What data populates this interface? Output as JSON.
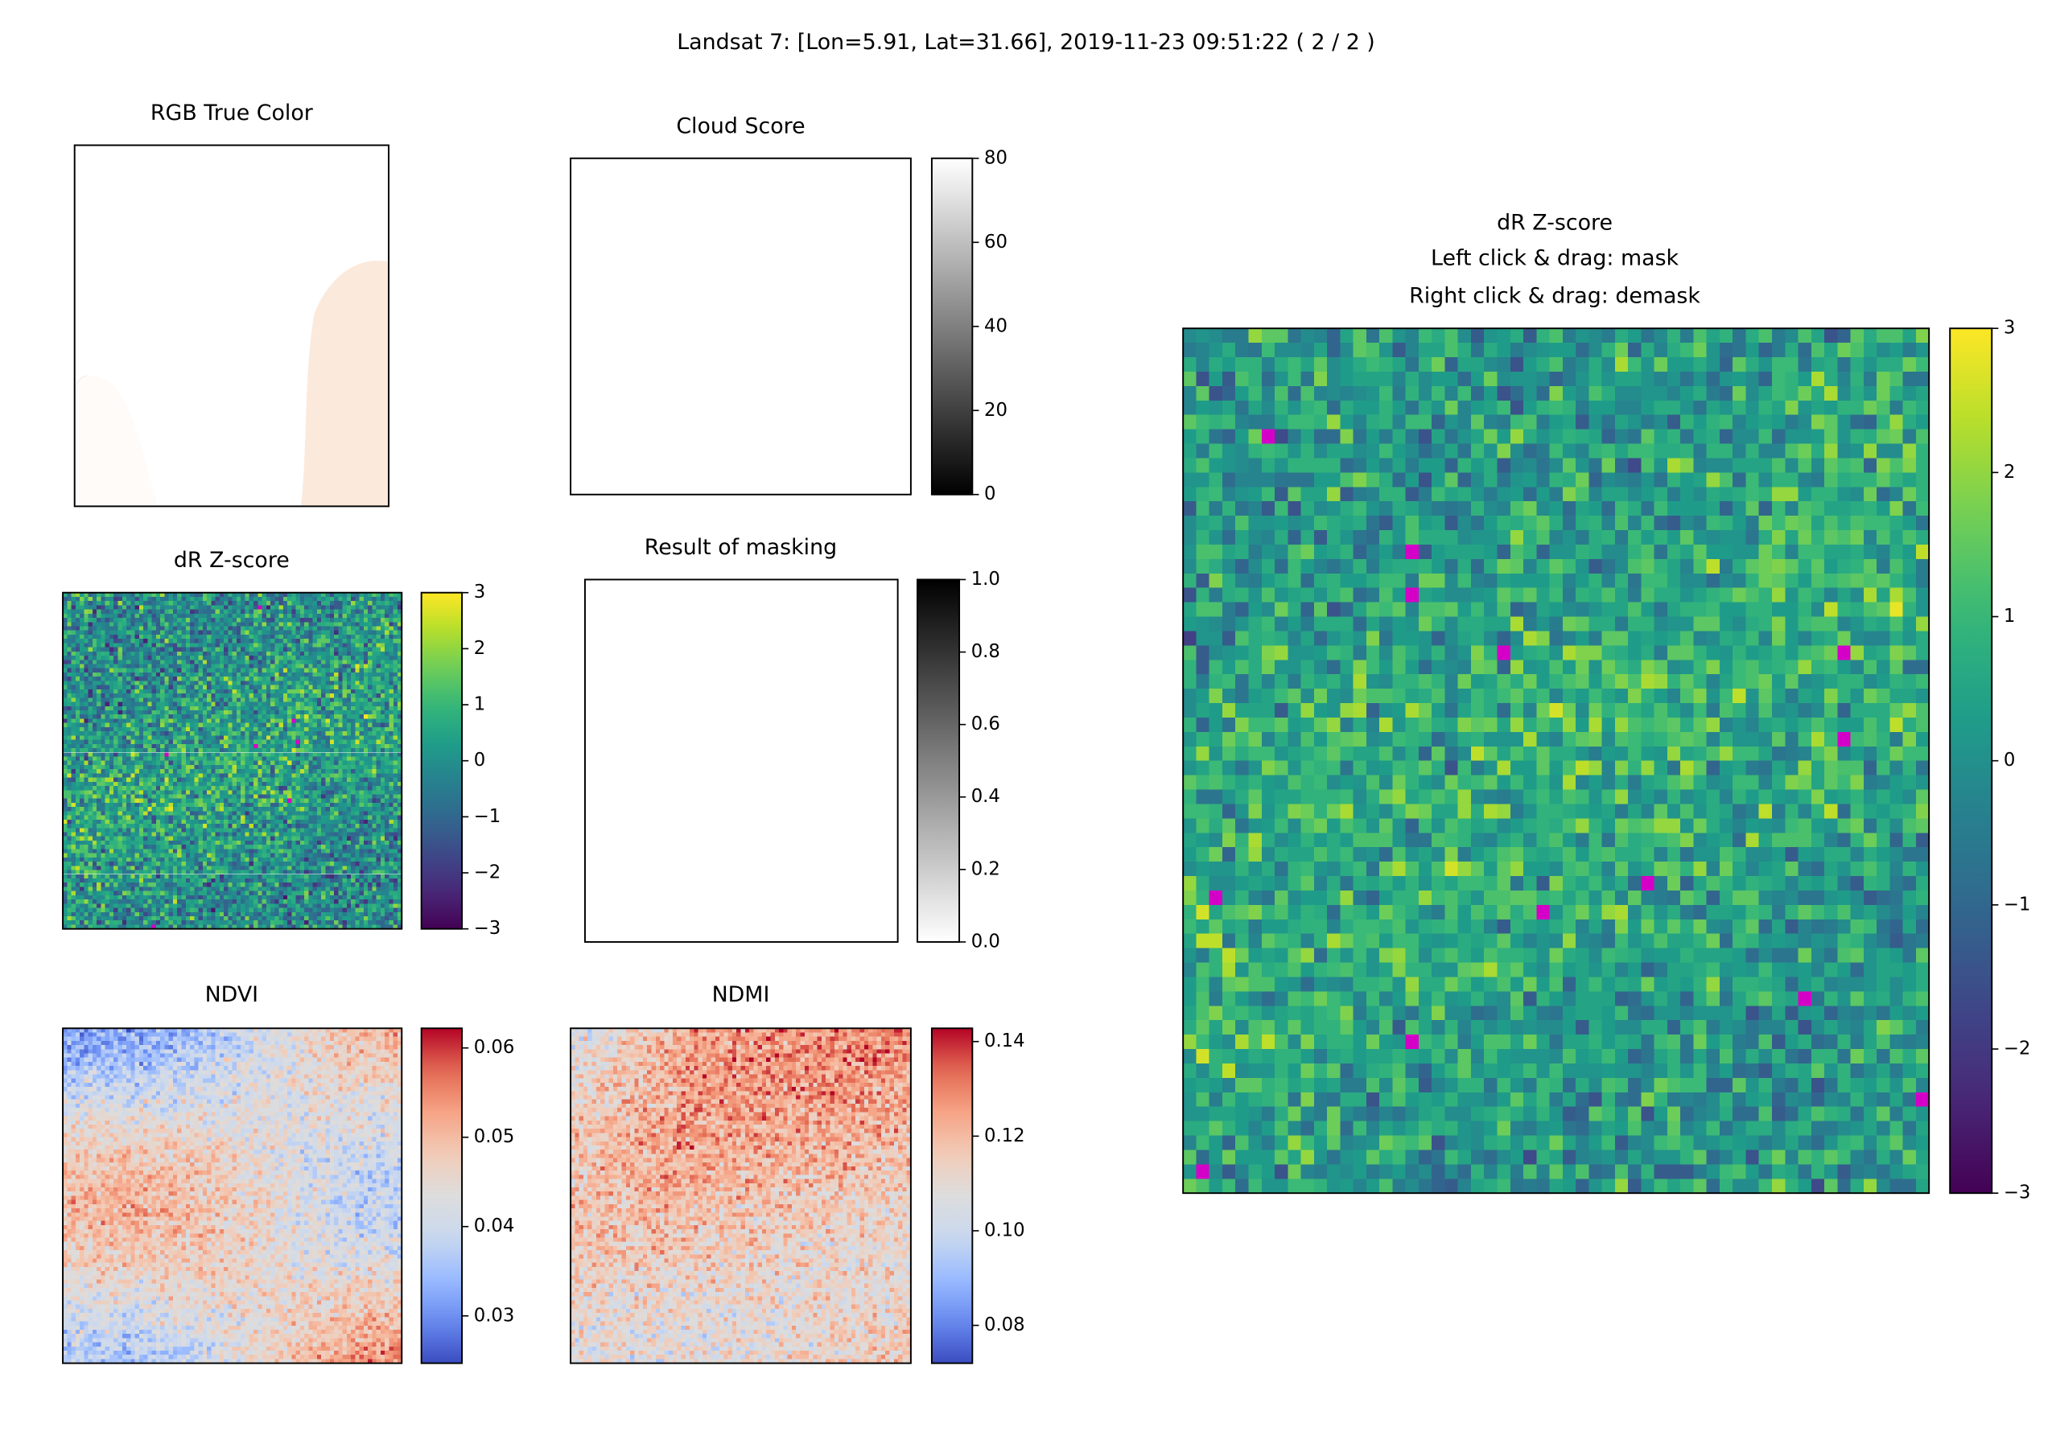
{
  "title": "Landsat 7: [Lon=5.91, Lat=31.66], 2019-11-23 09:51:22 ( 2 / 2 )",
  "panels": [
    {
      "id": "rgb",
      "title": "RGB True Color"
    },
    {
      "id": "cloud",
      "title": "Cloud Score",
      "colorbar": {
        "cmap": "gray",
        "lim": [
          0,
          80
        ],
        "ticks": [
          0,
          20,
          40,
          60,
          80
        ]
      }
    },
    {
      "id": "dr_small",
      "title": "dR Z-score",
      "colorbar": {
        "cmap": "viridis",
        "lim": [
          -3,
          3
        ],
        "ticks": [
          {
            "value": -3,
            "label": "−3"
          },
          {
            "value": -2,
            "label": "−2"
          },
          {
            "value": -1,
            "label": "−1"
          },
          0,
          1,
          2,
          3
        ]
      }
    },
    {
      "id": "mask",
      "title": "Result of masking",
      "colorbar": {
        "cmap": "gray_r",
        "lim": [
          0,
          1
        ],
        "ticks": [
          {
            "value": 0,
            "label": "0.0"
          },
          0.2,
          0.4,
          0.6,
          0.8,
          {
            "value": 1,
            "label": "1.0"
          }
        ]
      }
    },
    {
      "id": "ndvi",
      "title": "NDVI",
      "colorbar": {
        "cmap": "coolwarm",
        "lim": [
          0.0247,
          0.0622
        ],
        "ticks": [
          0.03,
          0.04,
          0.05,
          0.06
        ]
      }
    },
    {
      "id": "ndmi",
      "title": "NDMI",
      "colorbar": {
        "cmap": "coolwarm",
        "lim": [
          0.072,
          0.1428
        ],
        "ticks": [
          0.08,
          {
            "value": 0.1,
            "label": "0.10"
          },
          0.12,
          0.14
        ]
      }
    },
    {
      "id": "dr_big",
      "title_lines": [
        "dR Z-score",
        "Left click & drag: mask",
        "Right click & drag: demask"
      ],
      "colorbar": {
        "cmap": "viridis",
        "lim": [
          -3,
          3
        ],
        "ticks": [
          {
            "value": -3,
            "label": "−3"
          },
          {
            "value": -2,
            "label": "−2"
          },
          {
            "value": -1,
            "label": "−1"
          },
          0,
          1,
          2,
          3
        ]
      }
    }
  ]
}
